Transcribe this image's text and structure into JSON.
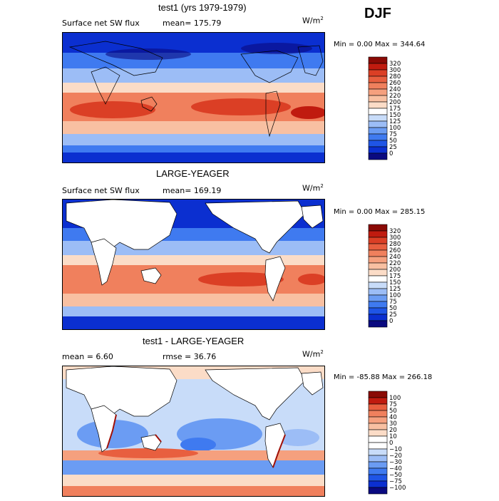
{
  "season": "DJF",
  "units": "W/m",
  "units_exp": "2",
  "panels": [
    {
      "title": "test1 (yrs 1979-1979)",
      "variable": "Surface net SW flux",
      "stat_left": "",
      "stat_mid": "mean= 175.79",
      "minmax": "Min =    0.00 Max = 344.64"
    },
    {
      "title": "LARGE-YEAGER",
      "variable": "Surface net SW flux",
      "stat_left": "",
      "stat_mid": "mean= 169.19",
      "minmax": "Min =    0.00 Max = 285.15"
    },
    {
      "title": "test1 - LARGE-YEAGER",
      "variable": "",
      "stat_left": "mean =   6.60",
      "stat_mid": "rmse =  36.76",
      "minmax": "Min = -85.88 Max = 266.18"
    }
  ],
  "colors": {
    "abs_scale": [
      "#0a0a80",
      "#0b2fd0",
      "#1f55e6",
      "#3f7af0",
      "#6b9cf3",
      "#9cbdf6",
      "#c8dcf9",
      "#ffffff",
      "#fbdcc7",
      "#f8c0a2",
      "#f5a07e",
      "#f0805d",
      "#e85f3f",
      "#db3f25",
      "#c01b0f",
      "#8a0a05"
    ],
    "diff_scale": [
      "#0a0a80",
      "#0b2fd0",
      "#1f55e6",
      "#3f7af0",
      "#6b9cf3",
      "#9cbdf6",
      "#c8dcf9",
      "#ffffff",
      "#ffffff",
      "#fbdcc7",
      "#f8c0a2",
      "#f5a07e",
      "#f0805d",
      "#e85f3f",
      "#c01b0f",
      "#8a0a05"
    ],
    "land": "#ffffff",
    "coast": "#000000"
  },
  "chart_data": [
    {
      "type": "heatmap",
      "title": "test1 (yrs 1979-1979)",
      "variable": "Surface net SW flux",
      "season": "DJF",
      "mean": 175.79,
      "min": 0.0,
      "max": 344.64,
      "colorbar_ticks": [
        "320",
        "300",
        "280",
        "260",
        "240",
        "220",
        "200",
        "175",
        "150",
        "125",
        "100",
        "75",
        "50",
        "25",
        "0"
      ]
    },
    {
      "type": "heatmap",
      "title": "LARGE-YEAGER",
      "variable": "Surface net SW flux",
      "season": "DJF",
      "mean": 169.19,
      "min": 0.0,
      "max": 285.15,
      "colorbar_ticks": [
        "320",
        "300",
        "280",
        "260",
        "240",
        "220",
        "200",
        "175",
        "150",
        "125",
        "100",
        "75",
        "50",
        "25",
        "0"
      ]
    },
    {
      "type": "heatmap",
      "title": "test1 - LARGE-YEAGER",
      "season": "DJF",
      "mean": 6.6,
      "rmse": 36.76,
      "min": -85.88,
      "max": 266.18,
      "colorbar_ticks": [
        "100",
        "75",
        "50",
        "40",
        "30",
        "20",
        "10",
        "0",
        "−10",
        "−20",
        "−30",
        "−40",
        "−50",
        "−75",
        "−100"
      ]
    }
  ]
}
